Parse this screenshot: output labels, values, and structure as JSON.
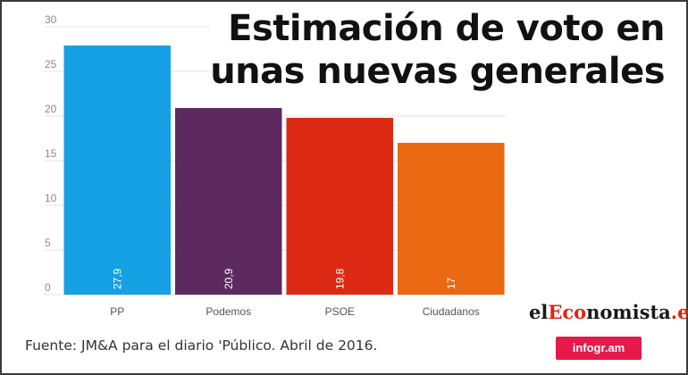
{
  "title_lines": [
    "Estimación de voto en",
    "unas nuevas generales"
  ],
  "source": "Fuente:  JM&A para el diario 'Público.  Abril de 2016.",
  "logo": {
    "part1": "el",
    "part2": "Eco",
    "part3": "nomista",
    "part4": ".es"
  },
  "badge": "infogr.am",
  "chart_data": {
    "type": "bar",
    "categories": [
      "PP",
      "Podemos",
      "PSOE",
      "Ciudadanos"
    ],
    "values": [
      27.9,
      20.9,
      19.8,
      17
    ],
    "value_labels": [
      "27,9",
      "20,9",
      "19,8",
      "17"
    ],
    "colors": [
      "#15a1e3",
      "#5c2a5f",
      "#dd2a15",
      "#ea6912"
    ],
    "ylim": [
      0,
      30
    ],
    "yticks": [
      0,
      5,
      10,
      15,
      20,
      25,
      30
    ],
    "grid": true,
    "title": "Estimación de voto en unas nuevas generales",
    "xlabel": "",
    "ylabel": ""
  }
}
